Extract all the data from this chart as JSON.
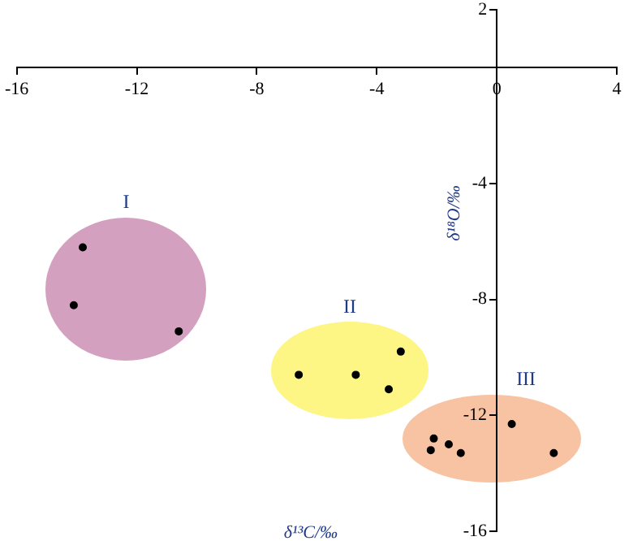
{
  "chart_data": {
    "type": "scatter",
    "xlabel": "δ¹³C/‰",
    "ylabel": "δ¹⁸O/‰",
    "xlim": [
      -16,
      4
    ],
    "xticks": [
      -16,
      -12,
      -8,
      -4,
      0,
      4
    ],
    "ylim": [
      -16,
      2
    ],
    "yticks": [
      2,
      -4,
      -8,
      -12,
      -16
    ],
    "grid": false,
    "legend": false,
    "marker": "circle",
    "series": [
      {
        "name": "I",
        "color": "#000000",
        "x": [
          -13.8,
          -14.1,
          -10.6
        ],
        "values": [
          -6.2,
          -8.2,
          -9.1
        ]
      },
      {
        "name": "II",
        "color": "#000000",
        "x": [
          -6.6,
          -4.7,
          -3.2,
          -3.6
        ],
        "values": [
          -10.6,
          -10.6,
          -9.8,
          -11.1
        ]
      },
      {
        "name": "III",
        "color": "#000000",
        "x": [
          0.5,
          -2.1,
          -2.2,
          -1.6,
          -1.2,
          1.9
        ],
        "values": [
          -12.3,
          -12.8,
          -13.2,
          -13.0,
          -13.3,
          -13.3
        ]
      }
    ]
  }
}
